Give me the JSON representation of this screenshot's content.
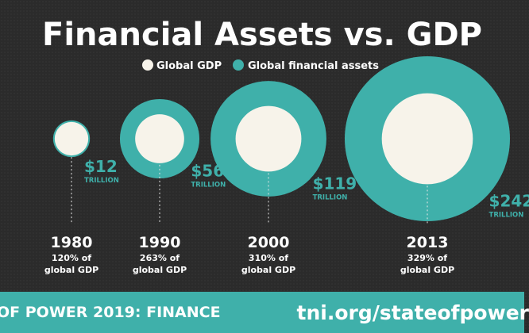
{
  "chart_data": {
    "type": "bubble",
    "title": "Financial Assets vs. GDP",
    "legend": {
      "placement": "top-center",
      "entries": [
        {
          "name": "Global GDP",
          "color": "#f7f3ea"
        },
        {
          "name": "Global financial assets",
          "color": "#3fb0aa"
        }
      ]
    },
    "unit": "TRILLION",
    "points": [
      {
        "year": "1980",
        "assets_label": "$12",
        "assets_value": 12,
        "ratio_label": "120% of",
        "ratio_value": 120,
        "gdp_label": "global GDP"
      },
      {
        "year": "1990",
        "assets_label": "$56",
        "assets_value": 56,
        "ratio_label": "263% of",
        "ratio_value": 263,
        "gdp_label": "global GDP"
      },
      {
        "year": "2000",
        "assets_label": "$119",
        "assets_value": 119,
        "ratio_label": "310% of",
        "ratio_value": 310,
        "gdp_label": "global GDP"
      },
      {
        "year": "2013",
        "assets_label": "$242",
        "assets_value": 242,
        "ratio_label": "329% of",
        "ratio_value": 329,
        "gdp_label": "global GDP"
      }
    ]
  },
  "footer": {
    "left": "OF POWER 2019: FINANCE",
    "right": "tni.org/stateofpower"
  }
}
